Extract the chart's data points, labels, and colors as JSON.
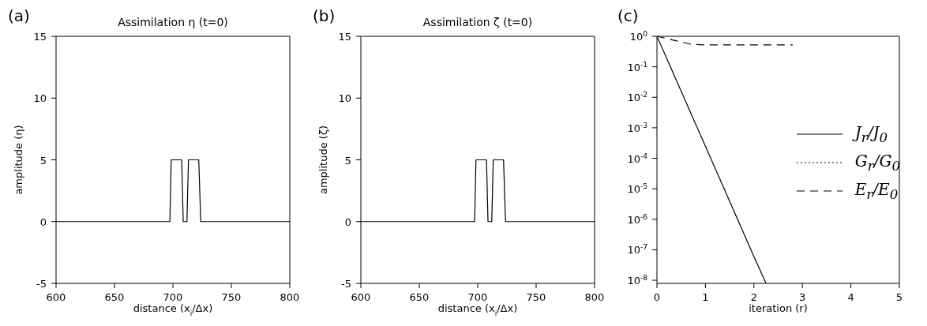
{
  "chart_data": [
    {
      "type": "line",
      "title": "Assimilation η (t=0)",
      "xlabel": "distance (x$_{i}$/Δx)",
      "ylabel": "amplitude (η)",
      "annotations": [
        "(a)"
      ],
      "marker": "none",
      "xlim": [
        600,
        800
      ],
      "ylim": [
        -5,
        15
      ],
      "xticks": [
        600,
        650,
        700,
        750,
        800
      ],
      "yticks": [
        -5,
        0,
        5,
        10,
        15
      ],
      "series": [
        {
          "color": "#000000",
          "line_style": "solid",
          "x": [
            600,
            697.4,
            698.5,
            707.5,
            708.8,
            712,
            713.3,
            722.1,
            723.8,
            800
          ],
          "values": [
            0,
            0,
            5,
            5,
            0,
            0,
            5,
            5,
            0,
            0
          ]
        }
      ]
    },
    {
      "type": "line",
      "title": "Assimilation ζ (t=0)",
      "xlabel": "distance (x$_{i}$/Δx)",
      "ylabel": "amplitude (ζ)",
      "annotations": [
        "(b)"
      ],
      "marker": "none",
      "xlim": [
        600,
        800
      ],
      "ylim": [
        -5,
        15
      ],
      "xticks": [
        600,
        650,
        700,
        750,
        800
      ],
      "yticks": [
        -5,
        0,
        5,
        10,
        15
      ],
      "series": [
        {
          "color": "#000000",
          "line_style": "solid",
          "x": [
            600,
            697.4,
            698.5,
            707.5,
            708.8,
            712,
            713.3,
            722.1,
            723.8,
            800
          ],
          "values": [
            0,
            0,
            5,
            5,
            0,
            0,
            5,
            5,
            0,
            0
          ]
        }
      ]
    },
    {
      "type": "line",
      "xlabel": "iteration (r)",
      "annotations": [
        "(c)"
      ],
      "marker": "none",
      "log": "y",
      "legend": "right",
      "xlim": [
        0,
        5
      ],
      "ylim": [
        7.9e-09,
        1
      ],
      "xticks": [
        0,
        1,
        2,
        3,
        4,
        5
      ],
      "yticks": [
        {
          "value": 1,
          "label": "10$^{0}$"
        },
        {
          "value": 0.1,
          "label": "10$^{-1}$"
        },
        {
          "value": 0.01,
          "label": "10$^{-2}$"
        },
        {
          "value": 0.001,
          "label": "10$^{-3}$"
        },
        {
          "value": 0.0001,
          "label": "10$^{-4}$"
        },
        {
          "value": 1e-05,
          "label": "10$^{-5}$"
        },
        {
          "value": 1e-06,
          "label": "10$^{-6}$"
        },
        {
          "value": 1e-07,
          "label": "10$^{-7}$"
        },
        {
          "value": 1e-08,
          "label": "10$^{-8}$"
        }
      ],
      "series": [
        {
          "name": "J$_{r}$/J$_{0}$",
          "color": "#000000",
          "line_style": "solid",
          "x": [
            0,
            1,
            2,
            2.25
          ],
          "values": [
            1,
            0.00025,
            6e-08,
            7.9e-09
          ]
        },
        {
          "name": "G$_{r}$/G$_{0}$",
          "color": "#000000",
          "line_style": "dotted"
        },
        {
          "name": "E$_{r}$/E$_{0}$",
          "color": "#000000",
          "line_style": "dashed",
          "x": [
            0,
            0.7,
            1,
            2.8
          ],
          "values": [
            1,
            0.55,
            0.52,
            0.52
          ]
        }
      ]
    }
  ]
}
